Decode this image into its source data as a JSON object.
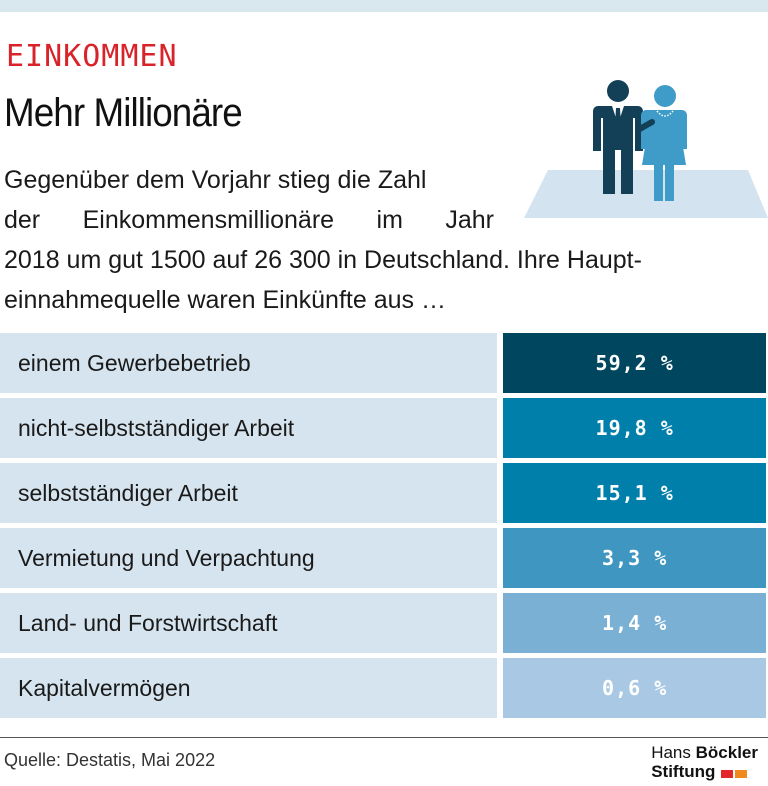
{
  "kicker": "EINKOMMEN",
  "title": "Mehr Millionäre",
  "intro": {
    "line1": "Gegenüber dem Vorjahr stieg die Zahl",
    "line2": "der Einkommensmillionäre im Jahr",
    "line3": "2018 um gut 1500 auf 26 300 in Deutschland. Ihre Haupt-",
    "line4": "einnahmequelle waren Einkünfte aus …"
  },
  "icons": {
    "illustration": "couple-on-platform-icon",
    "logo": "hbs-logo-squares-icon"
  },
  "chart_data": {
    "type": "table",
    "title": "Mehr Millionäre",
    "categories": [
      "einem Gewerbebetrieb",
      "nicht-selbstständiger Arbeit",
      "selbstständiger Arbeit",
      "Vermietung und Verpachtung",
      "Land- und Forstwirtschaft",
      "Kapitalvermögen"
    ],
    "values": [
      59.2,
      19.8,
      15.1,
      3.3,
      1.4,
      0.6
    ],
    "value_labels": [
      "59,2 %",
      "19,8 %",
      "15,1 %",
      "3,3 %",
      "1,4 %",
      "0,6 %"
    ],
    "unit": "%",
    "colors": [
      "#00465e",
      "#007fab",
      "#007fab",
      "#3f96c1",
      "#7ab0d3",
      "#a9c8e3"
    ]
  },
  "source": "Quelle: Destatis, Mai 2022",
  "logo": {
    "line1_a": "Hans ",
    "line1_b": "Böckler",
    "line2": "Stiftung"
  },
  "colors": {
    "accent_red": "#d9232a",
    "row_bg": "#d5e4ee",
    "band": "#d9e8ef",
    "logo_red": "#e3262b",
    "logo_orange": "#f08a1d"
  }
}
